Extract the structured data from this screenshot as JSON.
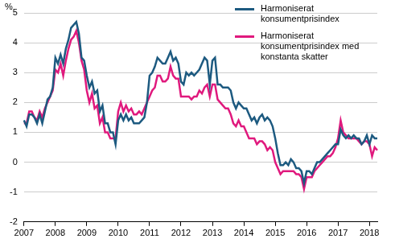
{
  "chart_data": {
    "type": "line",
    "y_label": "%",
    "categories": [
      "2007",
      null,
      null,
      null,
      null,
      null,
      null,
      null,
      null,
      null,
      null,
      null,
      "2008",
      null,
      null,
      null,
      null,
      null,
      null,
      null,
      null,
      null,
      null,
      null,
      "2009",
      null,
      null,
      null,
      null,
      null,
      null,
      null,
      null,
      null,
      null,
      null,
      "2010",
      null,
      null,
      null,
      null,
      null,
      null,
      null,
      null,
      null,
      null,
      null,
      "2011",
      null,
      null,
      null,
      null,
      null,
      null,
      null,
      null,
      null,
      null,
      null,
      "2012",
      null,
      null,
      null,
      null,
      null,
      null,
      null,
      null,
      null,
      null,
      null,
      "2013",
      null,
      null,
      null,
      null,
      null,
      null,
      null,
      null,
      null,
      null,
      null,
      "2014",
      null,
      null,
      null,
      null,
      null,
      null,
      null,
      null,
      null,
      null,
      null,
      "2015",
      null,
      null,
      null,
      null,
      null,
      null,
      null,
      null,
      null,
      null,
      null,
      "2016",
      null,
      null,
      null,
      null,
      null,
      null,
      null,
      null,
      null,
      null,
      null,
      "2017",
      null,
      null,
      null,
      null,
      null,
      null,
      null,
      null,
      null,
      null,
      null,
      "2018",
      null,
      null,
      null
    ],
    "series": [
      {
        "name": "Harmoniserat konsumentprisindex",
        "color": "#1d5a80",
        "values": [
          1.4,
          1.2,
          1.6,
          1.6,
          1.5,
          1.3,
          1.6,
          1.3,
          1.7,
          2.1,
          2.2,
          2.5,
          3.5,
          3.3,
          3.6,
          3.3,
          3.8,
          4.1,
          4.5,
          4.6,
          4.7,
          4.3,
          3.5,
          3.4,
          2.9,
          2.5,
          2.7,
          2.3,
          2.4,
          1.7,
          1.9,
          1.3,
          1.3,
          1.0,
          1.0,
          0.6,
          1.4,
          1.6,
          1.4,
          1.6,
          1.4,
          1.5,
          1.3,
          1.3,
          1.3,
          1.4,
          1.5,
          2.0,
          2.9,
          3.0,
          3.2,
          3.5,
          3.4,
          3.3,
          3.3,
          3.5,
          3.7,
          3.4,
          3.5,
          3.3,
          2.7,
          2.6,
          3.0,
          2.9,
          3.0,
          2.9,
          3.0,
          3.1,
          3.3,
          3.5,
          3.4,
          2.6,
          3.4,
          3.5,
          2.6,
          2.6,
          2.5,
          2.5,
          2.5,
          2.4,
          2.0,
          1.8,
          2.0,
          1.9,
          1.8,
          1.8,
          1.6,
          1.4,
          1.5,
          1.3,
          1.5,
          1.6,
          1.4,
          1.5,
          1.4,
          1.2,
          0.8,
          0.3,
          -0.1,
          -0.1,
          0.0,
          -0.1,
          0.1,
          0.0,
          -0.2,
          -0.2,
          -0.3,
          -0.7,
          -0.3,
          -0.3,
          -0.4,
          -0.2,
          0.0,
          0.0,
          0.1,
          0.2,
          0.3,
          0.4,
          0.5,
          0.6,
          0.6,
          1.1,
          0.9,
          0.8,
          0.9,
          0.8,
          0.9,
          0.8,
          0.8,
          0.6,
          0.7,
          0.9,
          0.6,
          0.9,
          0.8,
          0.8
        ]
      },
      {
        "name": "Harmoniserat konsumentprisindex med konstanta skatter",
        "color": "#e0197d",
        "values": [
          1.3,
          1.3,
          1.7,
          1.7,
          1.5,
          1.4,
          1.7,
          1.5,
          1.8,
          2.0,
          2.2,
          2.4,
          3.1,
          3.0,
          3.3,
          2.9,
          3.4,
          3.8,
          4.1,
          4.2,
          4.4,
          4.0,
          3.4,
          3.1,
          2.4,
          2.0,
          2.3,
          1.8,
          1.9,
          1.3,
          1.5,
          1.0,
          1.0,
          0.8,
          0.8,
          0.8,
          1.7,
          2.0,
          1.7,
          1.9,
          1.7,
          1.8,
          1.6,
          1.6,
          1.7,
          1.6,
          1.8,
          2.0,
          2.2,
          2.4,
          2.5,
          2.9,
          2.9,
          2.7,
          2.7,
          2.8,
          3.2,
          2.9,
          2.8,
          2.8,
          2.2,
          2.2,
          2.2,
          2.2,
          2.1,
          2.2,
          2.2,
          2.4,
          2.3,
          2.5,
          2.6,
          2.2,
          2.6,
          2.6,
          2.1,
          2.0,
          1.9,
          1.8,
          1.8,
          1.6,
          1.3,
          1.2,
          1.4,
          1.2,
          1.2,
          1.0,
          0.8,
          0.8,
          0.8,
          0.6,
          0.7,
          0.7,
          0.6,
          0.4,
          0.5,
          0.4,
          0.0,
          -0.2,
          -0.4,
          -0.3,
          -0.3,
          -0.3,
          -0.3,
          -0.3,
          -0.4,
          -0.4,
          -0.5,
          -0.9,
          -0.5,
          -0.5,
          -0.5,
          -0.3,
          -0.2,
          -0.1,
          0.0,
          0.1,
          0.2,
          0.2,
          0.3,
          0.5,
          0.8,
          1.4,
          1.0,
          0.9,
          0.8,
          0.8,
          0.8,
          0.8,
          0.7,
          0.6,
          0.7,
          0.7,
          0.6,
          0.2,
          0.5,
          0.4
        ]
      }
    ],
    "ylim": [
      -2,
      5
    ],
    "yticks": [
      -2,
      -1,
      0,
      1,
      2,
      3,
      4,
      5
    ],
    "grid": true,
    "legend": "top-right"
  }
}
